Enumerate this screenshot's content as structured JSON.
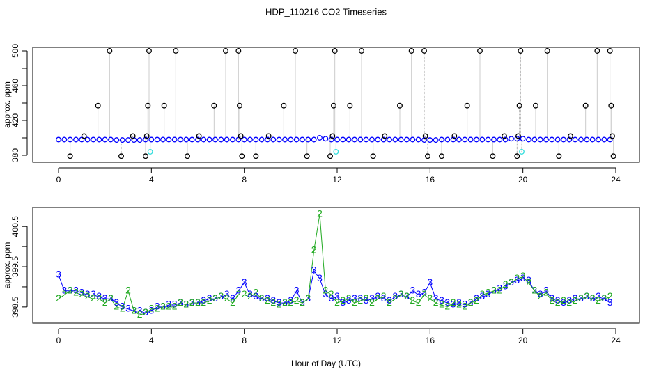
{
  "chart_data": [
    {
      "type": "scatter",
      "title": "HDP_110216  CO2 Timeseries",
      "ylabel": "approx. ppm",
      "xlim": [
        -1.11,
        25.02
      ],
      "xticks": [
        0,
        4,
        8,
        12,
        16,
        20,
        24
      ],
      "ylim": [
        372,
        504
      ],
      "yticks": [
        380,
        420,
        460,
        500
      ],
      "yminorticks": [
        400,
        440,
        480
      ],
      "series": [
        {
          "color": "#0000ff",
          "x": [
            0,
            0.25,
            0.5,
            0.75,
            1,
            1.25,
            1.5,
            1.75,
            2,
            2.25,
            2.5,
            2.75,
            3,
            3.25,
            3.5,
            3.75,
            4,
            4.25,
            4.5,
            4.75,
            5,
            5.25,
            5.5,
            5.75,
            6,
            6.25,
            6.5,
            6.75,
            7,
            7.25,
            7.5,
            7.75,
            8,
            8.25,
            8.5,
            8.75,
            9,
            9.25,
            9.5,
            9.75,
            10,
            10.25,
            10.5,
            10.75,
            11,
            11.25,
            11.5,
            11.75,
            12,
            12.25,
            12.5,
            12.75,
            13,
            13.25,
            13.5,
            13.75,
            14,
            14.25,
            14.5,
            14.75,
            15,
            15.25,
            15.5,
            15.75,
            16,
            16.25,
            16.5,
            16.75,
            17,
            17.25,
            17.5,
            17.75,
            18,
            18.25,
            18.5,
            18.75,
            19,
            19.25,
            19.5,
            19.75,
            20,
            20.25,
            20.5,
            20.75,
            21,
            21.25,
            21.5,
            21.75,
            22,
            22.25,
            22.5,
            22.75,
            23,
            23.25,
            23.5,
            23.75
          ],
          "values": [
            398,
            398,
            398,
            398,
            398,
            398,
            398,
            398,
            398,
            398,
            397.5,
            397.5,
            397.5,
            397.5,
            397.5,
            398,
            398,
            398,
            398,
            398,
            398,
            398,
            398,
            398,
            398,
            398,
            398,
            398,
            398,
            398,
            398,
            398,
            398,
            398,
            398,
            398,
            398,
            398,
            398,
            398,
            398,
            398,
            398,
            398,
            398,
            400,
            399,
            398,
            398,
            398,
            398,
            398,
            398,
            398,
            398,
            398,
            398,
            398,
            398,
            398,
            398,
            398,
            398,
            397.5,
            397.5,
            397.5,
            398,
            398,
            398,
            398,
            398,
            398,
            398,
            398,
            398,
            398,
            398,
            398,
            399,
            399,
            399,
            398,
            398,
            398,
            398,
            398,
            398,
            398,
            398,
            398,
            398,
            398,
            398,
            398,
            398,
            398
          ]
        },
        {
          "color": "#000000",
          "x": [
            0.5,
            1.1,
            1.7,
            2.2,
            2.7,
            3.2,
            3.75,
            3.8,
            3.85,
            3.9,
            4.55,
            5.05,
            5.55,
            6.05,
            6.7,
            7.2,
            7.75,
            7.8,
            7.85,
            7.9,
            8.5,
            9.05,
            9.7,
            10.2,
            10.7,
            11.7,
            11.8,
            11.85,
            11.9,
            12.55,
            13.05,
            13.55,
            14.05,
            14.7,
            15.2,
            15.75,
            15.8,
            15.9,
            16.5,
            17.05,
            17.6,
            18.15,
            18.7,
            19.2,
            19.75,
            19.8,
            19.85,
            19.9,
            20.55,
            21.05,
            21.55,
            22.05,
            22.7,
            23.2,
            23.75,
            23.8,
            23.85,
            23.9
          ],
          "values": [
            379,
            402,
            437,
            500,
            379,
            402,
            379,
            402,
            437,
            500,
            437,
            500,
            379,
            402,
            437,
            500,
            500,
            437,
            402,
            379,
            379,
            402,
            437,
            500,
            379,
            379,
            402,
            437,
            500,
            437,
            500,
            379,
            402,
            437,
            500,
            500,
            402,
            379,
            379,
            402,
            437,
            500,
            379,
            402,
            379,
            402,
            437,
            500,
            437,
            500,
            379,
            402,
            437,
            500,
            500,
            437,
            402,
            379
          ]
        },
        {
          "color": "#33dddd",
          "x": [
            3.95,
            11.95,
            19.95
          ],
          "values": [
            384,
            384,
            384
          ]
        }
      ]
    },
    {
      "type": "symbol-line",
      "ylabel": "approx. ppm",
      "xlabel": "Hour of Day (UTC)",
      "xlim": [
        -1.11,
        25.02
      ],
      "xticks": [
        0,
        4,
        8,
        12,
        16,
        20,
        24
      ],
      "ylim": [
        398.1,
        400.97
      ],
      "yticks": [
        398.5,
        399.5,
        400.5
      ],
      "yminorticks": [
        399,
        400
      ],
      "x": [
        0,
        0.25,
        0.5,
        0.75,
        1,
        1.25,
        1.5,
        1.75,
        2,
        2.25,
        2.5,
        2.75,
        3,
        3.25,
        3.5,
        3.75,
        4,
        4.25,
        4.5,
        4.75,
        5,
        5.25,
        5.5,
        5.75,
        6,
        6.25,
        6.5,
        6.75,
        7,
        7.25,
        7.5,
        7.75,
        8,
        8.25,
        8.5,
        8.75,
        9,
        9.25,
        9.5,
        9.75,
        10,
        10.25,
        10.5,
        10.75,
        11,
        11.25,
        11.5,
        11.75,
        12,
        12.25,
        12.5,
        12.75,
        13,
        13.25,
        13.5,
        13.75,
        14,
        14.25,
        14.5,
        14.75,
        15,
        15.25,
        15.5,
        15.75,
        16,
        16.25,
        16.5,
        16.75,
        17,
        17.25,
        17.5,
        17.75,
        18,
        18.25,
        18.5,
        18.75,
        19,
        19.25,
        19.5,
        19.75,
        20,
        20.25,
        20.5,
        20.75,
        21,
        21.25,
        21.5,
        21.75,
        22,
        22.25,
        22.5,
        22.75,
        23,
        23.25,
        23.5,
        23.75
      ],
      "series": [
        {
          "symbol": "3",
          "color": "#0000ff",
          "values": [
            399.3,
            398.9,
            398.9,
            398.9,
            398.85,
            398.8,
            398.8,
            398.75,
            398.7,
            398.7,
            398.6,
            398.5,
            398.45,
            398.4,
            398.4,
            398.35,
            398.4,
            398.5,
            398.5,
            398.55,
            398.55,
            398.6,
            398.55,
            398.6,
            398.6,
            398.65,
            398.7,
            398.7,
            398.75,
            398.8,
            398.7,
            398.9,
            399.1,
            398.8,
            398.75,
            398.7,
            398.7,
            398.65,
            398.6,
            398.6,
            398.65,
            398.9,
            398.6,
            398.7,
            399.4,
            399.2,
            398.8,
            398.7,
            398.75,
            398.6,
            398.65,
            398.7,
            398.7,
            398.65,
            398.7,
            398.75,
            398.7,
            398.65,
            398.75,
            398.8,
            398.75,
            398.9,
            398.8,
            398.85,
            399.1,
            398.7,
            398.65,
            398.6,
            398.55,
            398.6,
            398.55,
            398.6,
            398.7,
            398.75,
            398.8,
            398.9,
            398.95,
            399.0,
            399.1,
            399.15,
            399.2,
            399.15,
            398.9,
            398.8,
            398.9,
            398.7,
            398.65,
            398.6,
            398.65,
            398.7,
            398.7,
            398.75,
            398.7,
            398.75,
            398.7,
            398.6
          ]
        },
        {
          "symbol": "2",
          "color": "#22aa22",
          "values": [
            398.7,
            398.8,
            398.9,
            398.85,
            398.8,
            398.75,
            398.7,
            398.7,
            398.6,
            398.7,
            398.5,
            398.45,
            398.9,
            398.4,
            398.3,
            398.35,
            398.45,
            398.45,
            398.5,
            398.5,
            398.5,
            398.6,
            398.55,
            398.6,
            398.6,
            398.6,
            398.65,
            398.7,
            398.75,
            398.7,
            398.6,
            398.8,
            398.8,
            398.75,
            398.85,
            398.7,
            398.65,
            398.6,
            398.55,
            398.6,
            398.6,
            398.65,
            398.6,
            398.7,
            399.9,
            400.8,
            398.9,
            398.8,
            398.6,
            398.65,
            398.7,
            398.6,
            398.65,
            398.7,
            398.6,
            398.7,
            398.75,
            398.6,
            398.7,
            398.8,
            398.75,
            398.65,
            398.6,
            398.8,
            398.7,
            398.6,
            398.55,
            398.5,
            398.6,
            398.55,
            398.5,
            398.6,
            398.65,
            398.8,
            398.85,
            398.9,
            398.9,
            399.05,
            399.1,
            399.2,
            399.25,
            399.1,
            398.9,
            398.75,
            398.85,
            398.65,
            398.6,
            398.65,
            398.6,
            398.65,
            398.7,
            398.75,
            398.7,
            398.65,
            398.7,
            398.75
          ]
        }
      ]
    }
  ]
}
